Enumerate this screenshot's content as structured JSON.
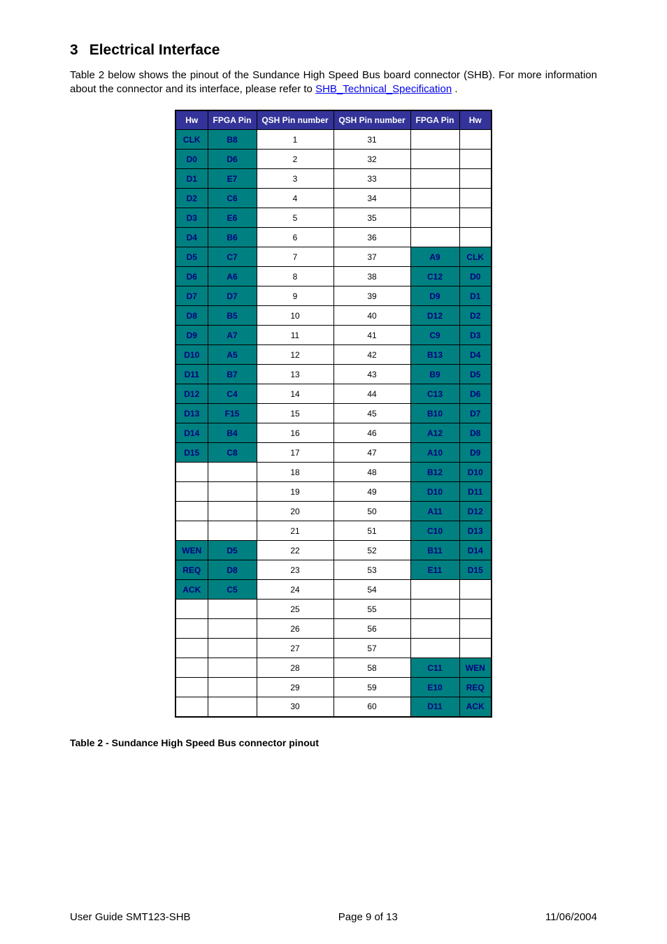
{
  "section": {
    "number": "3",
    "title": "Electrical Interface"
  },
  "intro": {
    "text_before_link": "Table 2 below shows the pinout of the Sundance High Speed Bus board connector (SHB). For more information about the connector and its interface, please refer to ",
    "link_text": "SHB_Technical_Specification",
    "text_after_link": " ."
  },
  "table": {
    "headers": [
      "Hw",
      "FPGA Pin",
      "QSH Pin number",
      "QSH Pin number",
      "FPGA Pin",
      "Hw"
    ],
    "col_widths": [
      "col-hw",
      "col-fpga",
      "col-qsh",
      "col-qsh",
      "col-fpga",
      "col-hw"
    ],
    "header_bg": "#333399",
    "header_fg": "#ffffff",
    "highlight_bg": "#008080",
    "highlight_fg": "#000080",
    "rows": [
      {
        "hw_l": "CLK",
        "fp_l": "B8",
        "q_l": "1",
        "q_r": "31",
        "fp_r": "",
        "hw_r": "",
        "l_hl": true,
        "r_hl": false
      },
      {
        "hw_l": "D0",
        "fp_l": "D6",
        "q_l": "2",
        "q_r": "32",
        "fp_r": "",
        "hw_r": "",
        "l_hl": true,
        "r_hl": false
      },
      {
        "hw_l": "D1",
        "fp_l": "E7",
        "q_l": "3",
        "q_r": "33",
        "fp_r": "",
        "hw_r": "",
        "l_hl": true,
        "r_hl": false
      },
      {
        "hw_l": "D2",
        "fp_l": "C6",
        "q_l": "4",
        "q_r": "34",
        "fp_r": "",
        "hw_r": "",
        "l_hl": true,
        "r_hl": false
      },
      {
        "hw_l": "D3",
        "fp_l": "E6",
        "q_l": "5",
        "q_r": "35",
        "fp_r": "",
        "hw_r": "",
        "l_hl": true,
        "r_hl": false
      },
      {
        "hw_l": "D4",
        "fp_l": "B6",
        "q_l": "6",
        "q_r": "36",
        "fp_r": "",
        "hw_r": "",
        "l_hl": true,
        "r_hl": false
      },
      {
        "hw_l": "D5",
        "fp_l": "C7",
        "q_l": "7",
        "q_r": "37",
        "fp_r": "A9",
        "hw_r": "CLK",
        "l_hl": true,
        "r_hl": true
      },
      {
        "hw_l": "D6",
        "fp_l": "A6",
        "q_l": "8",
        "q_r": "38",
        "fp_r": "C12",
        "hw_r": "D0",
        "l_hl": true,
        "r_hl": true
      },
      {
        "hw_l": "D7",
        "fp_l": "D7",
        "q_l": "9",
        "q_r": "39",
        "fp_r": "D9",
        "hw_r": "D1",
        "l_hl": true,
        "r_hl": true
      },
      {
        "hw_l": "D8",
        "fp_l": "B5",
        "q_l": "10",
        "q_r": "40",
        "fp_r": "D12",
        "hw_r": "D2",
        "l_hl": true,
        "r_hl": true
      },
      {
        "hw_l": "D9",
        "fp_l": "A7",
        "q_l": "11",
        "q_r": "41",
        "fp_r": "C9",
        "hw_r": "D3",
        "l_hl": true,
        "r_hl": true
      },
      {
        "hw_l": "D10",
        "fp_l": "A5",
        "q_l": "12",
        "q_r": "42",
        "fp_r": "B13",
        "hw_r": "D4",
        "l_hl": true,
        "r_hl": true
      },
      {
        "hw_l": "D11",
        "fp_l": "B7",
        "q_l": "13",
        "q_r": "43",
        "fp_r": "B9",
        "hw_r": "D5",
        "l_hl": true,
        "r_hl": true
      },
      {
        "hw_l": "D12",
        "fp_l": "C4",
        "q_l": "14",
        "q_r": "44",
        "fp_r": "C13",
        "hw_r": "D6",
        "l_hl": true,
        "r_hl": true
      },
      {
        "hw_l": "D13",
        "fp_l": "F15",
        "q_l": "15",
        "q_r": "45",
        "fp_r": "B10",
        "hw_r": "D7",
        "l_hl": true,
        "r_hl": true
      },
      {
        "hw_l": "D14",
        "fp_l": "B4",
        "q_l": "16",
        "q_r": "46",
        "fp_r": "A12",
        "hw_r": "D8",
        "l_hl": true,
        "r_hl": true
      },
      {
        "hw_l": "D15",
        "fp_l": "C8",
        "q_l": "17",
        "q_r": "47",
        "fp_r": "A10",
        "hw_r": "D9",
        "l_hl": true,
        "r_hl": true
      },
      {
        "hw_l": "",
        "fp_l": "",
        "q_l": "18",
        "q_r": "48",
        "fp_r": "B12",
        "hw_r": "D10",
        "l_hl": false,
        "r_hl": true
      },
      {
        "hw_l": "",
        "fp_l": "",
        "q_l": "19",
        "q_r": "49",
        "fp_r": "D10",
        "hw_r": "D11",
        "l_hl": false,
        "r_hl": true
      },
      {
        "hw_l": "",
        "fp_l": "",
        "q_l": "20",
        "q_r": "50",
        "fp_r": "A11",
        "hw_r": "D12",
        "l_hl": false,
        "r_hl": true
      },
      {
        "hw_l": "",
        "fp_l": "",
        "q_l": "21",
        "q_r": "51",
        "fp_r": "C10",
        "hw_r": "D13",
        "l_hl": false,
        "r_hl": true
      },
      {
        "hw_l": "WEN",
        "fp_l": "D5",
        "q_l": "22",
        "q_r": "52",
        "fp_r": "B11",
        "hw_r": "D14",
        "l_hl": true,
        "r_hl": true
      },
      {
        "hw_l": "REQ",
        "fp_l": "D8",
        "q_l": "23",
        "q_r": "53",
        "fp_r": "E11",
        "hw_r": "D15",
        "l_hl": true,
        "r_hl": true
      },
      {
        "hw_l": "ACK",
        "fp_l": "C5",
        "q_l": "24",
        "q_r": "54",
        "fp_r": "",
        "hw_r": "",
        "l_hl": true,
        "r_hl": false
      },
      {
        "hw_l": "",
        "fp_l": "",
        "q_l": "25",
        "q_r": "55",
        "fp_r": "",
        "hw_r": "",
        "l_hl": false,
        "r_hl": false
      },
      {
        "hw_l": "",
        "fp_l": "",
        "q_l": "26",
        "q_r": "56",
        "fp_r": "",
        "hw_r": "",
        "l_hl": false,
        "r_hl": false
      },
      {
        "hw_l": "",
        "fp_l": "",
        "q_l": "27",
        "q_r": "57",
        "fp_r": "",
        "hw_r": "",
        "l_hl": false,
        "r_hl": false
      },
      {
        "hw_l": "",
        "fp_l": "",
        "q_l": "28",
        "q_r": "58",
        "fp_r": "C11",
        "hw_r": "WEN",
        "l_hl": false,
        "r_hl": true
      },
      {
        "hw_l": "",
        "fp_l": "",
        "q_l": "29",
        "q_r": "59",
        "fp_r": "E10",
        "hw_r": "REQ",
        "l_hl": false,
        "r_hl": true
      },
      {
        "hw_l": "",
        "fp_l": "",
        "q_l": "30",
        "q_r": "60",
        "fp_r": "D11",
        "hw_r": "ACK",
        "l_hl": false,
        "r_hl": true
      }
    ]
  },
  "caption": "Table 2 - Sundance High Speed Bus connector pinout",
  "footer": {
    "left": "User Guide SMT123-SHB",
    "center": "Page 9 of 13",
    "right": "11/06/2004"
  }
}
